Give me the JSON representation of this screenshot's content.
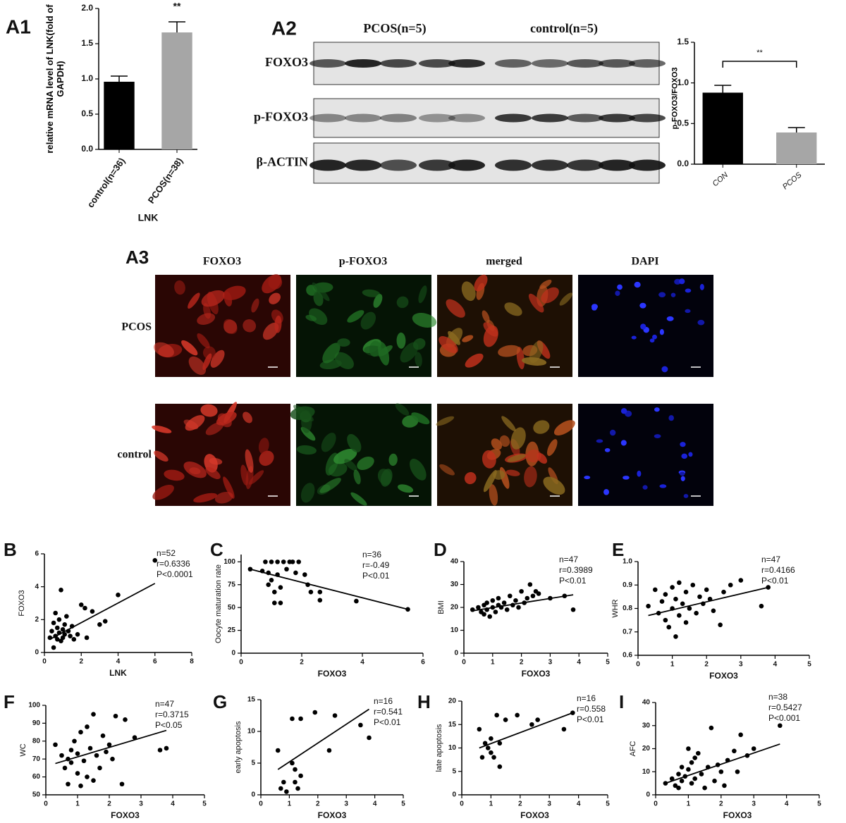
{
  "chart_data": [
    {
      "type": "bar",
      "panel": "A1",
      "categories": [
        "control(n=36)",
        "PCOS(n=38)"
      ],
      "values": [
        0.96,
        1.66
      ],
      "errors": [
        0.08,
        0.15
      ],
      "colors": [
        "#000000",
        "#a6a6a6"
      ],
      "ylim": [
        0,
        2
      ],
      "yticks": [
        {
          "value": 0,
          "label": "0.0"
        },
        0.5,
        {
          "value": 1,
          "label": "1.0"
        },
        1.5,
        {
          "value": 2,
          "label": "2.0"
        }
      ],
      "ylabel": "relative mRNA level of LNK(fold of GAPDH)",
      "xlabel": "LNK",
      "significance": "**",
      "italic_categories": false
    },
    {
      "type": "bar",
      "categories": [
        "CON",
        "PCOS"
      ],
      "values": [
        0.88,
        0.39
      ],
      "errors": [
        0.09,
        0.06
      ],
      "colors": [
        "#000000",
        "#a6a6a6"
      ],
      "ylim": [
        0,
        1.5
      ],
      "yticks": [
        {
          "value": 0,
          "label": "0.0"
        },
        0.5,
        {
          "value": 1,
          "label": "1.0"
        },
        1.5
      ],
      "ylabel": "p-FOXO3/FOXO3",
      "significance": "**",
      "italic_categories": true
    },
    {
      "type": "scatter",
      "panel": "B",
      "xlabel": "LNK",
      "ylabel": "FOXO3",
      "xlim": [
        0,
        8
      ],
      "xticks": [
        0,
        2,
        4,
        6,
        8
      ],
      "ylim": [
        0,
        6
      ],
      "yticks": [
        0,
        2,
        4,
        6
      ],
      "stats": [
        "n=52",
        "r=0.6336",
        "P<0.0001"
      ],
      "x": [
        0.3,
        0.4,
        0.5,
        0.5,
        0.6,
        0.6,
        0.7,
        0.7,
        0.8,
        0.8,
        0.9,
        0.9,
        1.0,
        1.0,
        1.1,
        1.1,
        1.2,
        1.3,
        1.5,
        1.6,
        1.8,
        2.0,
        2.2,
        2.3,
        2.6,
        3.0,
        3.3,
        4.0,
        6.0,
        1.4
      ],
      "values": [
        0.9,
        1.3,
        0.3,
        1.8,
        1.0,
        2.4,
        0.8,
        1.5,
        1.2,
        2.0,
        3.8,
        0.7,
        1.4,
        0.9,
        1.7,
        1.1,
        2.2,
        1.3,
        1.6,
        0.8,
        1.1,
        2.9,
        2.7,
        0.9,
        2.5,
        1.7,
        1.9,
        3.5,
        5.6,
        1.0
      ],
      "fit": {
        "x": [
          0.3,
          6
        ],
        "y": [
          0.8,
          4.2
        ]
      }
    },
    {
      "type": "scatter",
      "panel": "C",
      "xlabel": "FOXO3",
      "ylabel": "Oocyte maturation rate",
      "xlim": [
        0,
        6
      ],
      "xticks": [
        0,
        2,
        4,
        6
      ],
      "ylim": [
        0,
        108
      ],
      "yticks": [
        0,
        25,
        50,
        75,
        100
      ],
      "stats": [
        "n=36",
        "r=-0.49",
        "P<0.01"
      ],
      "x": [
        0.3,
        0.7,
        0.8,
        0.9,
        0.9,
        1.0,
        1.0,
        1.1,
        1.1,
        1.2,
        1.2,
        1.3,
        1.3,
        1.4,
        1.5,
        1.6,
        1.7,
        1.8,
        1.9,
        2.1,
        2.2,
        2.3,
        2.6,
        2.6,
        3.8,
        5.5
      ],
      "values": [
        92,
        90,
        100,
        88,
        75,
        100,
        80,
        67,
        55,
        100,
        86,
        72,
        55,
        100,
        92,
        100,
        100,
        88,
        100,
        86,
        75,
        67,
        67,
        58,
        57,
        48
      ],
      "fit": {
        "x": [
          0.3,
          5.5
        ],
        "y": [
          92,
          48
        ]
      }
    },
    {
      "type": "scatter",
      "panel": "D",
      "xlabel": "FOXO3",
      "ylabel": "BMI",
      "xlim": [
        0,
        5
      ],
      "xticks": [
        0,
        1,
        2,
        3,
        4,
        5
      ],
      "ylim": [
        0,
        40
      ],
      "yticks": [
        0,
        10,
        20,
        30,
        40
      ],
      "stats": [
        "n=47",
        "r=0.3989",
        "P<0.01"
      ],
      "x": [
        0.3,
        0.5,
        0.6,
        0.7,
        0.7,
        0.8,
        0.8,
        0.9,
        1.0,
        1.0,
        1.1,
        1.2,
        1.2,
        1.3,
        1.4,
        1.5,
        1.6,
        1.7,
        1.8,
        1.9,
        2.0,
        2.1,
        2.2,
        2.3,
        2.4,
        2.5,
        2.6,
        3.0,
        3.5,
        3.8
      ],
      "values": [
        19,
        20,
        18,
        21,
        17,
        22,
        19,
        16,
        20,
        23,
        18,
        21,
        24,
        20,
        22,
        19,
        25,
        21,
        23,
        20,
        27,
        22,
        24,
        30,
        25,
        27,
        26,
        24,
        25,
        19
      ],
      "fit": {
        "x": [
          0.3,
          3.8
        ],
        "y": [
          18.5,
          25.5
        ]
      }
    },
    {
      "type": "scatter",
      "panel": "E",
      "xlabel": "FOXO3",
      "ylabel": "WHR",
      "xlim": [
        0,
        5
      ],
      "xticks": [
        0,
        1,
        2,
        3,
        4,
        5
      ],
      "ylim": [
        0.6,
        1
      ],
      "yticks": [
        0.6,
        0.7,
        0.8,
        0.9,
        {
          "value": 1,
          "label": "1.0"
        }
      ],
      "stats": [
        "n=47",
        "r=0.4166",
        "P<0.01"
      ],
      "x": [
        0.3,
        0.5,
        0.6,
        0.7,
        0.8,
        0.8,
        0.9,
        1.0,
        1.0,
        1.1,
        1.1,
        1.2,
        1.2,
        1.3,
        1.4,
        1.4,
        1.5,
        1.6,
        1.7,
        1.8,
        1.9,
        2.0,
        2.1,
        2.2,
        2.4,
        2.5,
        2.7,
        3.0,
        3.6,
        3.8
      ],
      "values": [
        0.81,
        0.88,
        0.78,
        0.83,
        0.75,
        0.86,
        0.72,
        0.8,
        0.89,
        0.68,
        0.84,
        0.77,
        0.91,
        0.82,
        0.74,
        0.87,
        0.8,
        0.9,
        0.78,
        0.85,
        0.82,
        0.88,
        0.84,
        0.79,
        0.73,
        0.87,
        0.9,
        0.92,
        0.81,
        0.89
      ],
      "fit": {
        "x": [
          0.3,
          3.8
        ],
        "y": [
          0.77,
          0.89
        ]
      }
    },
    {
      "type": "scatter",
      "panel": "F",
      "xlabel": "FOXO3",
      "ylabel": "WC",
      "xlim": [
        0,
        5
      ],
      "xticks": [
        0,
        1,
        2,
        3,
        4,
        5
      ],
      "ylim": [
        50,
        100
      ],
      "yticks": [
        50,
        60,
        70,
        80,
        90,
        100
      ],
      "stats": [
        "n=47",
        "r=0.3715",
        "P<0.05"
      ],
      "x": [
        0.3,
        0.5,
        0.6,
        0.7,
        0.7,
        0.8,
        0.8,
        0.9,
        1.0,
        1.0,
        1.1,
        1.1,
        1.2,
        1.3,
        1.3,
        1.4,
        1.5,
        1.6,
        1.7,
        1.8,
        1.9,
        2.0,
        2.2,
        2.4,
        2.5,
        2.8,
        3.6,
        3.8,
        2.1,
        1.5
      ],
      "values": [
        78,
        72,
        65,
        56,
        70,
        75,
        68,
        80,
        62,
        73,
        55,
        85,
        69,
        88,
        60,
        76,
        95,
        72,
        65,
        83,
        74,
        78,
        94,
        56,
        92,
        82,
        75,
        76,
        70,
        58
      ],
      "fit": {
        "x": [
          0.3,
          3.8
        ],
        "y": [
          67.5,
          86
        ]
      }
    },
    {
      "type": "scatter",
      "panel": "G",
      "xlabel": "FOXO3",
      "ylabel": "early apoptosis",
      "xlim": [
        0,
        5
      ],
      "xticks": [
        0,
        1,
        2,
        3,
        4,
        5
      ],
      "ylim": [
        0,
        15
      ],
      "yticks": [
        0,
        5,
        10,
        15
      ],
      "stats": [
        "n=16",
        "r=0.541",
        "P<0.01"
      ],
      "x": [
        0.6,
        0.7,
        0.8,
        0.9,
        1.1,
        1.1,
        1.2,
        1.2,
        1.3,
        1.4,
        1.4,
        1.9,
        2.4,
        2.6,
        3.5,
        3.8
      ],
      "values": [
        7,
        1,
        2,
        0.5,
        5,
        12,
        4,
        2,
        1,
        3,
        12,
        13,
        7,
        12.5,
        11,
        9
      ],
      "fit": {
        "x": [
          0.6,
          3.8
        ],
        "y": [
          4,
          13.5
        ]
      }
    },
    {
      "type": "scatter",
      "panel": "H",
      "xlabel": "FOXO3",
      "ylabel": "late apoptosis",
      "xlim": [
        0,
        5
      ],
      "xticks": [
        0,
        1,
        2,
        3,
        4,
        5
      ],
      "ylim": [
        0,
        20
      ],
      "yticks": [
        0,
        5,
        10,
        15,
        20
      ],
      "stats": [
        "n=16",
        "r=0.558",
        "P<0.01"
      ],
      "x": [
        0.6,
        0.7,
        0.8,
        0.9,
        1.0,
        1.0,
        1.1,
        1.2,
        1.3,
        1.3,
        1.5,
        1.9,
        2.4,
        2.6,
        3.5,
        3.8
      ],
      "values": [
        14,
        8,
        11,
        10,
        9,
        12,
        8,
        17,
        11,
        6,
        16,
        17,
        15,
        16,
        14,
        17.5
      ],
      "fit": {
        "x": [
          0.6,
          3.8
        ],
        "y": [
          10,
          17.5
        ]
      }
    },
    {
      "type": "scatter",
      "panel": "I",
      "xlabel": "FOXO3",
      "ylabel": "AFC",
      "xlim": [
        0,
        5
      ],
      "xticks": [
        0,
        1,
        2,
        3,
        4,
        5
      ],
      "ylim": [
        0,
        40
      ],
      "yticks": [
        0,
        10,
        20,
        30,
        40
      ],
      "stats": [
        "n=38",
        "r=0.5427",
        "P<0.001"
      ],
      "x": [
        0.3,
        0.5,
        0.6,
        0.7,
        0.7,
        0.8,
        0.8,
        0.9,
        1.0,
        1.0,
        1.1,
        1.1,
        1.2,
        1.3,
        1.4,
        1.5,
        1.6,
        1.7,
        1.8,
        1.9,
        2.0,
        2.1,
        2.2,
        2.4,
        2.5,
        2.6,
        2.8,
        3.0,
        3.8,
        1.2
      ],
      "values": [
        5,
        7,
        4,
        9,
        3,
        12,
        6,
        8,
        20,
        11,
        5,
        14,
        7,
        18,
        9,
        3,
        12,
        29,
        6,
        13,
        10,
        4,
        15,
        19,
        10,
        26,
        17,
        20,
        30,
        16
      ],
      "fit": {
        "x": [
          0.3,
          3.8
        ],
        "y": [
          5,
          22
        ]
      }
    }
  ],
  "blot": {
    "panel": "A2",
    "groups": [
      "PCOS(n=5)",
      "control(n=5)"
    ],
    "rows": [
      "FOXO3",
      "p-FOXO3",
      "β-ACTIN"
    ]
  },
  "micrographs": {
    "panel": "A3",
    "columns": [
      "FOXO3",
      "p-FOXO3",
      "merged",
      "DAPI"
    ],
    "rows": [
      "PCOS",
      "control"
    ]
  }
}
